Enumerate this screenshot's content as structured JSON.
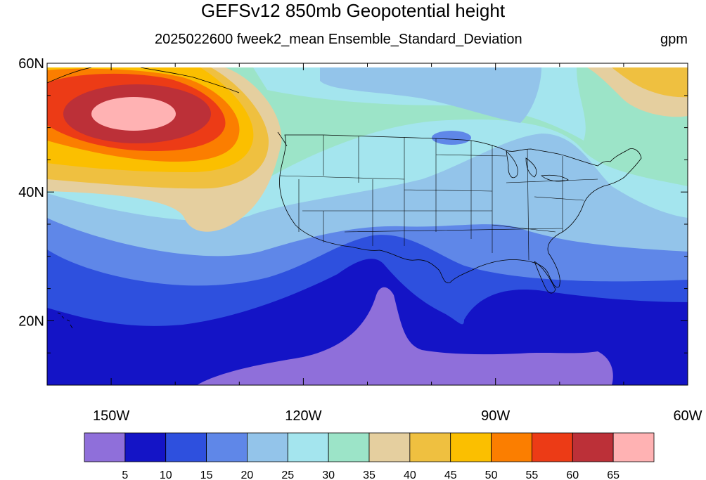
{
  "title": "GEFSv12 850mb Geopotential height",
  "subtitle": "2025022600 fweek2_mean Ensemble_Standard_Deviation",
  "units": "gpm",
  "map": {
    "lon_range": [
      -160,
      -60
    ],
    "lat_range": [
      10,
      60
    ],
    "lat_ticks": [
      {
        "value": 60,
        "label": "60N"
      },
      {
        "value": 40,
        "label": "40N"
      },
      {
        "value": 20,
        "label": "20N"
      }
    ],
    "lon_ticks": [
      {
        "value": -150,
        "label": "150W"
      },
      {
        "value": -120,
        "label": "120W"
      },
      {
        "value": -90,
        "label": "90W"
      },
      {
        "value": -60,
        "label": "60W"
      }
    ]
  },
  "colorbar": {
    "colors": [
      "#8f6fda",
      "#1414c6",
      "#2e50de",
      "#5f87e8",
      "#93c4ea",
      "#a4e5ee",
      "#9ce4c8",
      "#e5cf9f",
      "#efc040",
      "#fbbf00",
      "#fb7e00",
      "#ec3b16",
      "#bc3038",
      "#ffb2b3"
    ],
    "labels": [
      "5",
      "10",
      "15",
      "20",
      "25",
      "30",
      "35",
      "40",
      "45",
      "50",
      "55",
      "60",
      "65"
    ]
  },
  "colors": {
    "c5": "#8f6fda",
    "c10": "#1414c6",
    "c15": "#2e50de",
    "c20": "#5f87e8",
    "c25": "#93c4ea",
    "c30": "#a4e5ee",
    "c35": "#9ce4c8",
    "c40": "#e5cf9f",
    "c45": "#efc040",
    "c50": "#fbbf00",
    "c55": "#fb7e00",
    "c60": "#ec3b16",
    "c65": "#bc3038",
    "c70": "#ffb2b3"
  }
}
